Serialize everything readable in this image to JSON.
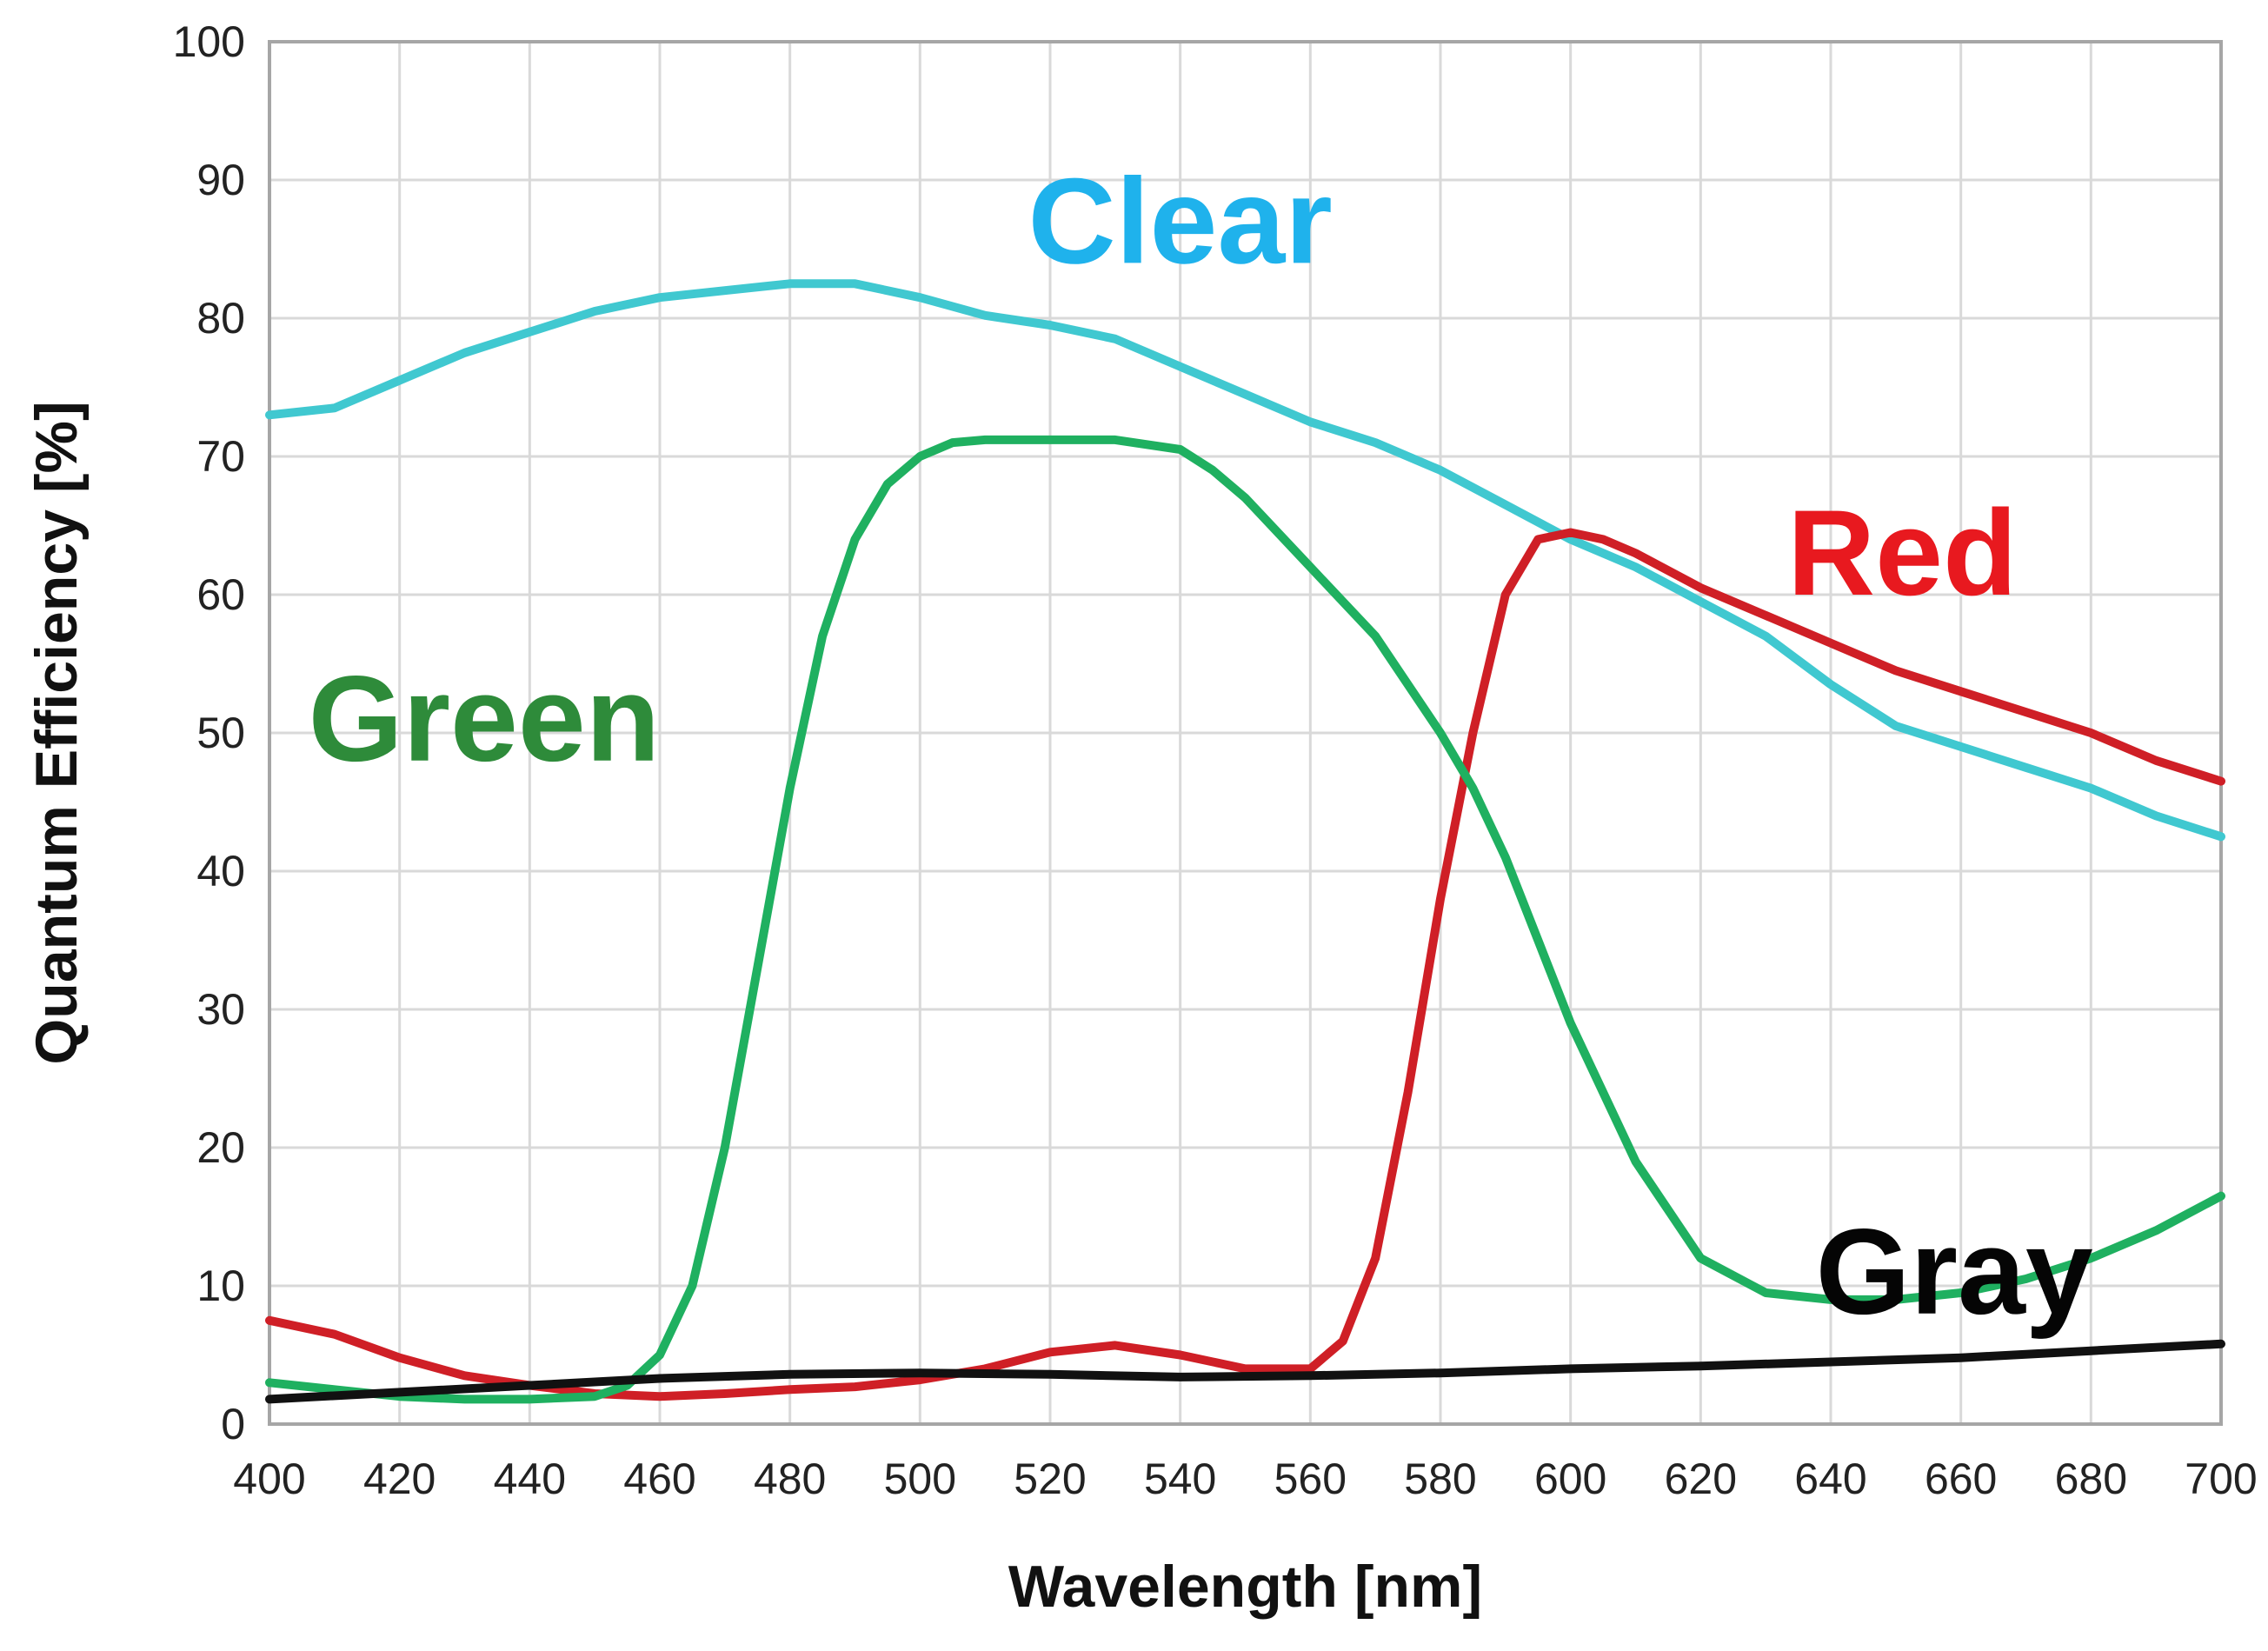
{
  "chart_data": {
    "type": "line",
    "title": "",
    "xlabel": "Wavelength [nm]",
    "ylabel": "Quantum Efficiency [%]",
    "xlim": [
      400,
      700
    ],
    "ylim": [
      0,
      100
    ],
    "x_ticks": [
      400,
      420,
      440,
      460,
      480,
      500,
      520,
      540,
      560,
      580,
      600,
      620,
      640,
      660,
      680,
      700
    ],
    "y_ticks": [
      0,
      10,
      20,
      30,
      40,
      50,
      60,
      70,
      80,
      90,
      100
    ],
    "grid": true,
    "legend": "inline labels",
    "series": [
      {
        "name": "Clear",
        "color": "#40c8d0",
        "label_color": "#1fb2ec",
        "label_anchor": [
          540,
          84
        ],
        "x": [
          400,
          410,
          420,
          430,
          440,
          450,
          460,
          470,
          480,
          490,
          500,
          510,
          520,
          530,
          540,
          550,
          560,
          570,
          580,
          590,
          600,
          610,
          620,
          630,
          640,
          650,
          660,
          670,
          680,
          690,
          700
        ],
        "y": [
          73,
          73.5,
          75.5,
          77.5,
          79,
          80.5,
          81.5,
          82,
          82.5,
          82.5,
          81.5,
          80.2,
          79.5,
          78.5,
          76.5,
          74.5,
          72.5,
          71,
          69,
          66.5,
          64,
          62,
          59.5,
          57,
          53.5,
          50.5,
          49,
          47.5,
          46,
          44,
          42.5
        ]
      },
      {
        "name": "Green",
        "color": "#1fb060",
        "label_color": "#2e8b3a",
        "label_anchor": [
          433,
          48
        ],
        "x": [
          400,
          410,
          420,
          430,
          440,
          450,
          455,
          460,
          465,
          470,
          475,
          480,
          485,
          490,
          495,
          500,
          505,
          510,
          520,
          530,
          540,
          545,
          550,
          560,
          570,
          580,
          585,
          590,
          595,
          600,
          610,
          620,
          630,
          640,
          650,
          660,
          670,
          680,
          690,
          700
        ],
        "y": [
          3,
          2.5,
          2,
          1.8,
          1.8,
          2,
          2.8,
          5,
          10,
          20,
          33,
          46,
          57,
          64,
          68,
          70,
          71,
          71.2,
          71.2,
          71.2,
          70.5,
          69,
          67,
          62,
          57,
          50,
          46,
          41,
          35,
          29,
          19,
          12,
          9.5,
          9,
          9,
          9.5,
          10.5,
          12,
          14,
          16.5
        ]
      },
      {
        "name": "Red",
        "color": "#cf1f26",
        "label_color": "#e8191f",
        "label_anchor": [
          651,
          60
        ],
        "x": [
          400,
          410,
          420,
          430,
          440,
          450,
          460,
          470,
          480,
          490,
          500,
          510,
          520,
          530,
          540,
          550,
          560,
          565,
          570,
          575,
          580,
          585,
          590,
          595,
          600,
          605,
          610,
          620,
          630,
          640,
          650,
          660,
          670,
          680,
          690,
          700
        ],
        "y": [
          7.5,
          6.5,
          4.8,
          3.5,
          2.8,
          2.2,
          2,
          2.2,
          2.5,
          2.7,
          3.2,
          4,
          5.2,
          5.7,
          5,
          4,
          4,
          6,
          12,
          24,
          38,
          50,
          60,
          64,
          64.5,
          64,
          63,
          60.5,
          58.5,
          56.5,
          54.5,
          53,
          51.5,
          50,
          48,
          46.5
        ]
      },
      {
        "name": "Gray",
        "color": "#111111",
        "label_color": "#050505",
        "label_anchor": [
          659,
          8
        ],
        "x": [
          400,
          420,
          440,
          460,
          480,
          500,
          520,
          540,
          560,
          580,
          600,
          620,
          640,
          660,
          680,
          700
        ],
        "y": [
          1.8,
          2.3,
          2.8,
          3.3,
          3.6,
          3.7,
          3.6,
          3.4,
          3.5,
          3.7,
          4,
          4.2,
          4.5,
          4.8,
          5.3,
          5.8
        ]
      }
    ]
  }
}
